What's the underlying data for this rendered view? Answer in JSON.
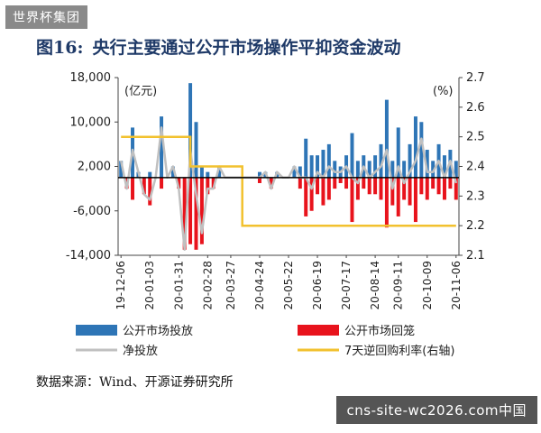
{
  "badge": "世界杯集团",
  "title_num": "图16:",
  "title_text": "央行主要通过公开市场操作平抑资金波动",
  "source": "数据来源：Wind、开源证券研究所",
  "watermark": "cns-site-wc2026.com中国",
  "colors": {
    "inject": "#2e75b6",
    "withdraw": "#e8131c",
    "net": "#c0c0c0",
    "rate": "#f2c12e"
  },
  "chart_data": {
    "type": "bar",
    "left_axis": {
      "unit": "(亿元)",
      "ticks": [
        "18,000",
        "10,000",
        "2,000",
        "-6,000",
        "-14,000"
      ],
      "ylim": [
        -14000,
        18000
      ]
    },
    "right_axis": {
      "unit": "(%)",
      "ticks": [
        "2.7",
        "2.6",
        "2.5",
        "2.4",
        "2.3",
        "2.2",
        "2.1"
      ],
      "ylim": [
        2.1,
        2.7
      ]
    },
    "x_tick_labels": [
      "19-12-06",
      "20-01-03",
      "20-01-31",
      "20-02-28",
      "20-03-27",
      "20-04-24",
      "20-05-22",
      "20-06-19",
      "20-07-17",
      "20-08-14",
      "20-09-11",
      "20-10-09",
      "20-11-06"
    ],
    "legend": [
      "公开市场投放",
      "公开市场回笼",
      "净投放",
      "7天逆回购利率(右轴)"
    ],
    "series": [
      {
        "name": "公开市场投放",
        "axis": "left",
        "type": "bar",
        "values": [
          3000,
          0,
          9000,
          1000,
          0,
          1000,
          0,
          11000,
          0,
          2000,
          0,
          0,
          17000,
          10000,
          2000,
          1000,
          0,
          2000,
          0,
          0,
          0,
          0,
          0,
          0,
          1000,
          1000,
          0,
          1000,
          0,
          0,
          2000,
          2000,
          7000,
          4000,
          4000,
          5000,
          6000,
          3000,
          2000,
          4000,
          8000,
          3000,
          4000,
          3000,
          4000,
          6000,
          14000,
          3000,
          9000,
          3000,
          6000,
          11000,
          10000,
          5000,
          3000,
          6000,
          4000,
          5000,
          3000
        ]
      },
      {
        "name": "公开市场回笼",
        "axis": "left",
        "type": "bar",
        "values": [
          0,
          -2000,
          -4000,
          0,
          -3000,
          -5000,
          0,
          -2000,
          0,
          0,
          -2000,
          -13000,
          -12000,
          -13000,
          -12000,
          -3000,
          -2000,
          0,
          0,
          0,
          0,
          0,
          0,
          0,
          -1000,
          0,
          -2000,
          0,
          0,
          0,
          0,
          -2000,
          -7000,
          -6000,
          -3000,
          -5000,
          -4000,
          -2000,
          -1000,
          -2000,
          -8000,
          -4000,
          -2000,
          -3000,
          -3000,
          -4000,
          -9000,
          -5000,
          -7000,
          -4000,
          -5000,
          -8000,
          -3000,
          -4000,
          -2000,
          -3000,
          -4000,
          -2000,
          -4000
        ]
      },
      {
        "name": "净投放",
        "axis": "left",
        "type": "line",
        "values": [
          3000,
          -2000,
          5000,
          1000,
          -3000,
          -4000,
          0,
          9000,
          0,
          2000,
          -2000,
          -13000,
          5000,
          -3000,
          -10000,
          -2000,
          -2000,
          2000,
          0,
          0,
          0,
          0,
          0,
          0,
          0,
          1000,
          -2000,
          1000,
          0,
          0,
          2000,
          0,
          0,
          -2000,
          1000,
          0,
          2000,
          1000,
          1000,
          2000,
          0,
          -1000,
          2000,
          0,
          1000,
          2000,
          5000,
          -2000,
          2000,
          -1000,
          1000,
          3000,
          7000,
          1000,
          1000,
          3000,
          0,
          3000,
          -1000
        ]
      },
      {
        "name": "7天逆回购利率(右轴)",
        "axis": "right",
        "type": "line",
        "values": [
          2.5,
          2.5,
          2.5,
          2.5,
          2.5,
          2.5,
          2.5,
          2.5,
          2.5,
          2.5,
          2.5,
          2.5,
          2.4,
          2.4,
          2.4,
          2.4,
          2.4,
          2.4,
          2.4,
          2.4,
          2.4,
          2.2,
          2.2,
          2.2,
          2.2,
          2.2,
          2.2,
          2.2,
          2.2,
          2.2,
          2.2,
          2.2,
          2.2,
          2.2,
          2.2,
          2.2,
          2.2,
          2.2,
          2.2,
          2.2,
          2.2,
          2.2,
          2.2,
          2.2,
          2.2,
          2.2,
          2.2,
          2.2,
          2.2,
          2.2,
          2.2,
          2.2,
          2.2,
          2.2,
          2.2,
          2.2,
          2.2,
          2.2,
          2.2
        ]
      }
    ]
  }
}
